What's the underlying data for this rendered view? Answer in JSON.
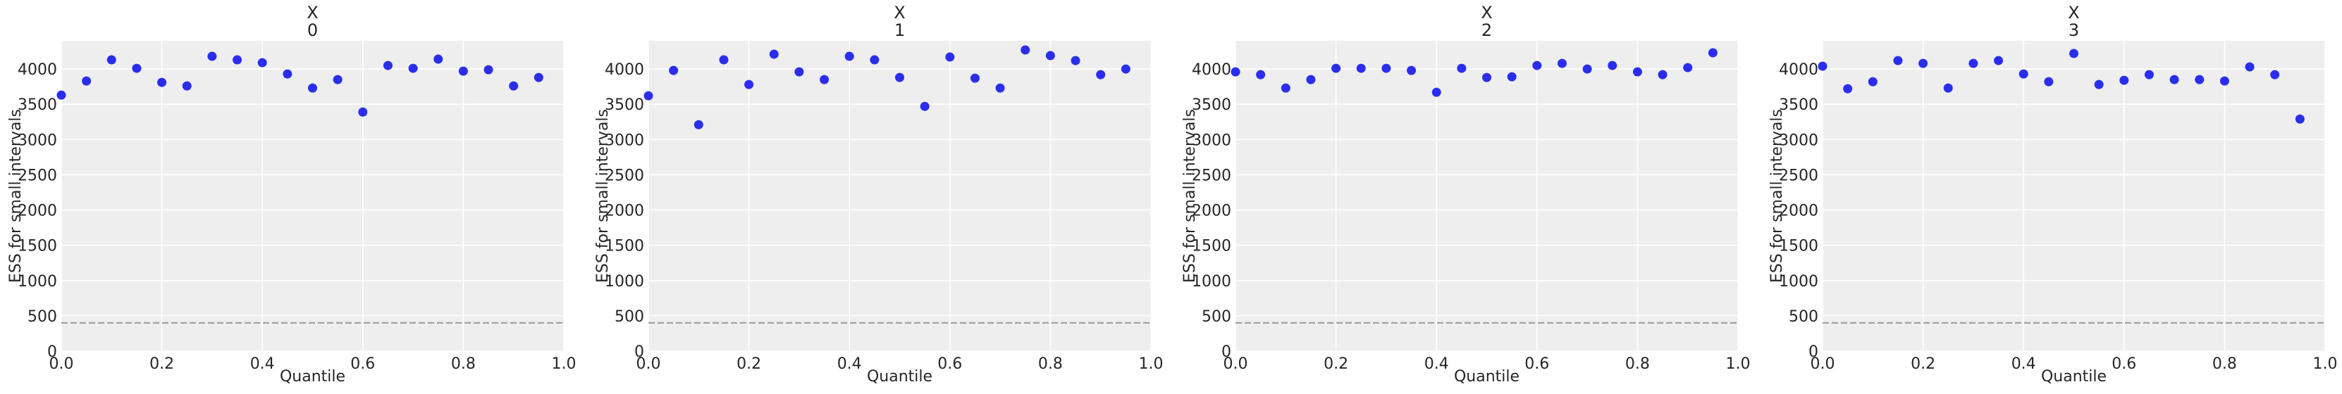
{
  "colors": {
    "background": "#ffffff",
    "axes_face": "#eeeeee",
    "grid": "#ffffff",
    "point": "#2a2eec",
    "reference_line": "#999999",
    "text": "#262626"
  },
  "chart_data": [
    {
      "type": "scatter",
      "title": "X\n0",
      "title_lines": [
        "X",
        "0"
      ],
      "xlabel": "Quantile",
      "ylabel": "ESS for small intervals",
      "xlim": [
        0.0,
        1.0
      ],
      "ylim": [
        0,
        4400
      ],
      "xticks": [
        0.0,
        0.2,
        0.4,
        0.6,
        0.8,
        1.0
      ],
      "xtick_labels": [
        "0.0",
        "0.2",
        "0.4",
        "0.6",
        "0.8",
        "1.0"
      ],
      "yticks": [
        0,
        500,
        1000,
        1500,
        2000,
        2500,
        3000,
        3500,
        4000
      ],
      "ytick_labels": [
        "0",
        "500",
        "1000",
        "1500",
        "2000",
        "2500",
        "3000",
        "3500",
        "4000"
      ],
      "grid": true,
      "reference_line": 400,
      "x": [
        0.0,
        0.05,
        0.1,
        0.15,
        0.2,
        0.25,
        0.3,
        0.35,
        0.4,
        0.45,
        0.5,
        0.55,
        0.6,
        0.65,
        0.7,
        0.75,
        0.8,
        0.85,
        0.9,
        0.95
      ],
      "y": [
        3630,
        3830,
        4130,
        4010,
        3810,
        3760,
        4180,
        4130,
        4090,
        3930,
        3730,
        3850,
        3390,
        4050,
        4010,
        4140,
        3970,
        3990,
        3760,
        3880
      ]
    },
    {
      "type": "scatter",
      "title": "X\n1",
      "title_lines": [
        "X",
        "1"
      ],
      "xlabel": "Quantile",
      "ylabel": "ESS for small intervals",
      "xlim": [
        0.0,
        1.0
      ],
      "ylim": [
        0,
        4400
      ],
      "xticks": [
        0.0,
        0.2,
        0.4,
        0.6,
        0.8,
        1.0
      ],
      "xtick_labels": [
        "0.0",
        "0.2",
        "0.4",
        "0.6",
        "0.8",
        "1.0"
      ],
      "yticks": [
        0,
        500,
        1000,
        1500,
        2000,
        2500,
        3000,
        3500,
        4000
      ],
      "ytick_labels": [
        "0",
        "500",
        "1000",
        "1500",
        "2000",
        "2500",
        "3000",
        "3500",
        "4000"
      ],
      "grid": true,
      "reference_line": 400,
      "x": [
        0.0,
        0.05,
        0.1,
        0.15,
        0.2,
        0.25,
        0.3,
        0.35,
        0.4,
        0.45,
        0.5,
        0.55,
        0.6,
        0.65,
        0.7,
        0.75,
        0.8,
        0.85,
        0.9,
        0.95
      ],
      "y": [
        3620,
        3980,
        3210,
        4130,
        3780,
        4210,
        3960,
        3850,
        4180,
        4130,
        3880,
        3470,
        4170,
        3870,
        3730,
        4270,
        4190,
        4120,
        3920,
        4000
      ]
    },
    {
      "type": "scatter",
      "title": "X\n2",
      "title_lines": [
        "X",
        "2"
      ],
      "xlabel": "Quantile",
      "ylabel": "ESS for small intervals",
      "xlim": [
        0.0,
        1.0
      ],
      "ylim": [
        0,
        4400
      ],
      "xticks": [
        0.0,
        0.2,
        0.4,
        0.6,
        0.8,
        1.0
      ],
      "xtick_labels": [
        "0.0",
        "0.2",
        "0.4",
        "0.6",
        "0.8",
        "1.0"
      ],
      "yticks": [
        0,
        500,
        1000,
        1500,
        2000,
        2500,
        3000,
        3500,
        4000
      ],
      "ytick_labels": [
        "0",
        "500",
        "1000",
        "1500",
        "2000",
        "2500",
        "3000",
        "3500",
        "4000"
      ],
      "grid": true,
      "reference_line": 400,
      "x": [
        0.0,
        0.05,
        0.1,
        0.15,
        0.2,
        0.25,
        0.3,
        0.35,
        0.4,
        0.45,
        0.5,
        0.55,
        0.6,
        0.65,
        0.7,
        0.75,
        0.8,
        0.85,
        0.9,
        0.95
      ],
      "y": [
        3960,
        3920,
        3730,
        3850,
        4010,
        4010,
        4010,
        3980,
        3670,
        4010,
        3880,
        3890,
        4050,
        4080,
        4000,
        4050,
        3960,
        3920,
        4020,
        4230
      ]
    },
    {
      "type": "scatter",
      "title": "X\n3",
      "title_lines": [
        "X",
        "3"
      ],
      "xlabel": "Quantile",
      "ylabel": "ESS for small intervals",
      "xlim": [
        0.0,
        1.0
      ],
      "ylim": [
        0,
        4400
      ],
      "xticks": [
        0.0,
        0.2,
        0.4,
        0.6,
        0.8,
        1.0
      ],
      "xtick_labels": [
        "0.0",
        "0.2",
        "0.4",
        "0.6",
        "0.8",
        "1.0"
      ],
      "yticks": [
        0,
        500,
        1000,
        1500,
        2000,
        2500,
        3000,
        3500,
        4000
      ],
      "ytick_labels": [
        "0",
        "500",
        "1000",
        "1500",
        "2000",
        "2500",
        "3000",
        "3500",
        "4000"
      ],
      "grid": true,
      "reference_line": 400,
      "x": [
        0.0,
        0.05,
        0.1,
        0.15,
        0.2,
        0.25,
        0.3,
        0.35,
        0.4,
        0.45,
        0.5,
        0.55,
        0.6,
        0.65,
        0.7,
        0.75,
        0.8,
        0.85,
        0.9,
        0.95
      ],
      "y": [
        4040,
        3720,
        3820,
        4120,
        4080,
        3730,
        4080,
        4120,
        3930,
        3820,
        4220,
        3780,
        3840,
        3920,
        3850,
        3850,
        3830,
        4030,
        3920,
        3290
      ]
    }
  ]
}
